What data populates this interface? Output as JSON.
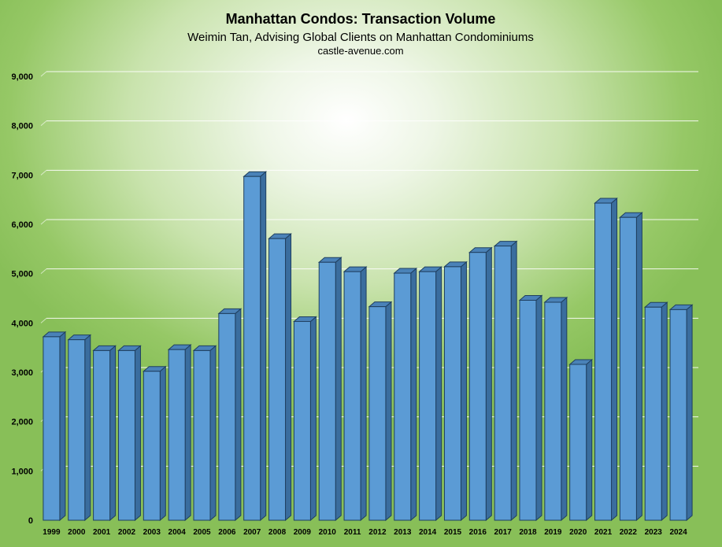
{
  "chart": {
    "title": "Manhattan Condos: Transaction Volume",
    "subtitle": "Weimin Tan, Advising Global Clients on Manhattan Condominiums",
    "source": "castle-avenue.com"
  },
  "colors": {
    "bar_front": "#5b9bd5",
    "bar_top": "#4a82b8",
    "bar_side": "#3a6d9e",
    "bar_outline": "#1f3f5f",
    "background_center": "#ffffff",
    "background_edge": "#88bf58"
  },
  "chart_data": {
    "type": "bar",
    "title": "Manhattan Condos: Transaction Volume",
    "subtitle": "Weimin Tan, Advising Global Clients on Manhattan Condominiums",
    "xlabel": "",
    "ylabel": "",
    "ylim": [
      0,
      9000
    ],
    "yticks": [
      0,
      1000,
      2000,
      3000,
      4000,
      5000,
      6000,
      7000,
      8000,
      9000
    ],
    "ytick_labels": [
      "0",
      "1,000",
      "2,000",
      "3,000",
      "4,000",
      "5,000",
      "6,000",
      "7,000",
      "8,000",
      "9,000"
    ],
    "grid": true,
    "legend": "none",
    "categories": [
      "1999",
      "2000",
      "2001",
      "2002",
      "2003",
      "2004",
      "2005",
      "2006",
      "2007",
      "2008",
      "2009",
      "2010",
      "2011",
      "2012",
      "2013",
      "2014",
      "2015",
      "2016",
      "2017",
      "2018",
      "2019",
      "2020",
      "2021",
      "2022",
      "2023",
      "2024"
    ],
    "values": [
      3720,
      3660,
      3440,
      3440,
      3020,
      3460,
      3440,
      4190,
      6970,
      5710,
      4030,
      5230,
      5040,
      4330,
      5010,
      5040,
      5140,
      5430,
      5560,
      4460,
      4420,
      3160,
      6430,
      6140,
      4320,
      4270
    ]
  }
}
